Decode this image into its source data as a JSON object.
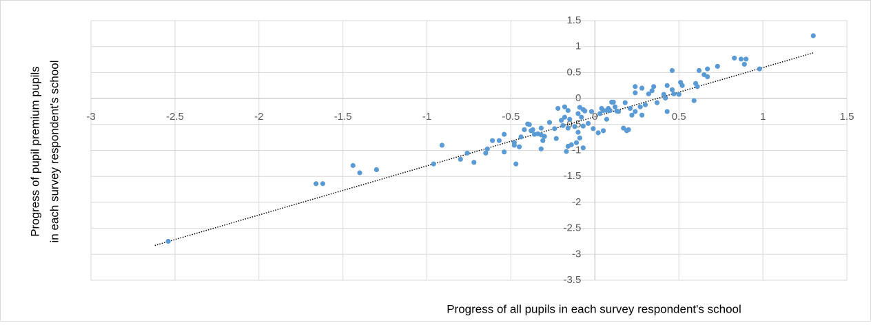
{
  "chart_data": {
    "type": "scatter",
    "xlabel": "Progress of all pupils in each survey respondent's school",
    "ylabel": [
      "Progress of pupil premium pupils",
      "in each survey respondent's school"
    ],
    "color": "#5b9bd5",
    "grid": true,
    "xlim": [
      -3,
      1.5
    ],
    "ylim": [
      -3.5,
      1.5
    ],
    "xticks": [
      -3,
      -2.5,
      -2,
      -1.5,
      -1,
      -0.5,
      0,
      0.5,
      1,
      1.5
    ],
    "yticks": [
      -3.5,
      -3,
      -2.5,
      -2,
      -1.5,
      -1,
      -0.5,
      0,
      0.5,
      1,
      1.5
    ],
    "x": [
      -2.54,
      -1.66,
      -1.62,
      -1.44,
      -1.4,
      -1.3,
      -0.96,
      -0.91,
      -0.8,
      -0.72,
      -0.76,
      -0.65,
      -0.64,
      -0.61,
      -0.57,
      -0.54,
      -0.54,
      -0.48,
      -0.47,
      -0.48,
      -0.45,
      -0.44,
      -0.42,
      -0.4,
      -0.39,
      -0.38,
      -0.37,
      -0.36,
      -0.34,
      -0.32,
      -0.32,
      -0.31,
      -0.32,
      -0.3,
      -0.27,
      -0.24,
      -0.23,
      -0.22,
      -0.2,
      -0.19,
      -0.18,
      -0.18,
      -0.17,
      -0.16,
      -0.16,
      -0.16,
      -0.15,
      -0.14,
      -0.12,
      -0.11,
      -0.1,
      -0.1,
      -0.09,
      -0.09,
      -0.08,
      -0.07,
      -0.07,
      -0.07,
      -0.06,
      -0.04,
      -0.02,
      -0.01,
      0.02,
      0.03,
      0.04,
      0.05,
      0.05,
      0.07,
      0.07,
      0.08,
      0.09,
      0.1,
      0.11,
      0.12,
      0.13,
      0.14,
      0.17,
      0.18,
      0.19,
      0.2,
      0.21,
      0.22,
      0.24,
      0.24,
      0.24,
      0.27,
      0.28,
      0.28,
      0.3,
      0.32,
      0.34,
      0.35,
      0.37,
      0.41,
      0.42,
      0.43,
      0.43,
      0.46,
      0.46,
      0.47,
      0.5,
      0.51,
      0.52,
      0.59,
      0.6,
      0.61,
      0.62,
      0.65,
      0.67,
      0.67,
      0.73,
      0.83,
      0.87,
      0.9,
      0.89,
      0.98,
      1.3
    ],
    "values": [
      -2.75,
      -1.64,
      -1.64,
      -1.29,
      -1.43,
      -1.37,
      -1.26,
      -0.9,
      -1.17,
      -1.23,
      -1.05,
      -1.05,
      -0.97,
      -0.81,
      -0.81,
      -0.69,
      -1.03,
      -0.9,
      -1.26,
      -0.85,
      -0.93,
      -0.74,
      -0.6,
      -0.49,
      -0.5,
      -0.62,
      -0.6,
      -0.69,
      -0.68,
      -0.7,
      -0.57,
      -0.81,
      -0.97,
      -0.73,
      -0.46,
      -0.58,
      -0.77,
      -0.19,
      -0.42,
      -0.52,
      -0.36,
      -0.16,
      -1.02,
      -0.23,
      -0.57,
      -0.92,
      -0.4,
      -0.89,
      -0.54,
      -0.85,
      -0.29,
      -0.65,
      -0.17,
      -0.76,
      -0.36,
      -0.53,
      -0.21,
      -0.95,
      -0.24,
      -0.48,
      -0.25,
      -0.58,
      -0.66,
      -0.29,
      -0.19,
      -0.62,
      -0.23,
      -0.23,
      -0.4,
      -0.19,
      -0.23,
      -0.07,
      -0.07,
      -0.16,
      -0.24,
      -0.25,
      -0.57,
      -0.08,
      -0.62,
      -0.6,
      -0.19,
      -0.32,
      0.23,
      0.11,
      -0.25,
      -0.16,
      0.2,
      -0.32,
      -0.12,
      0.09,
      0.15,
      0.23,
      -0.08,
      0.08,
      0.01,
      0.25,
      -0.25,
      0.54,
      0.17,
      0.09,
      0.08,
      0.31,
      0.25,
      -0.04,
      0.29,
      0.23,
      0.54,
      0.46,
      0.42,
      0.57,
      0.62,
      0.78,
      0.76,
      0.76,
      0.66,
      0.57,
      1.21
    ],
    "trendline": {
      "x": [
        -2.62,
        1.3
      ],
      "values": [
        -2.83,
        0.88
      ],
      "color": "#000000"
    }
  }
}
